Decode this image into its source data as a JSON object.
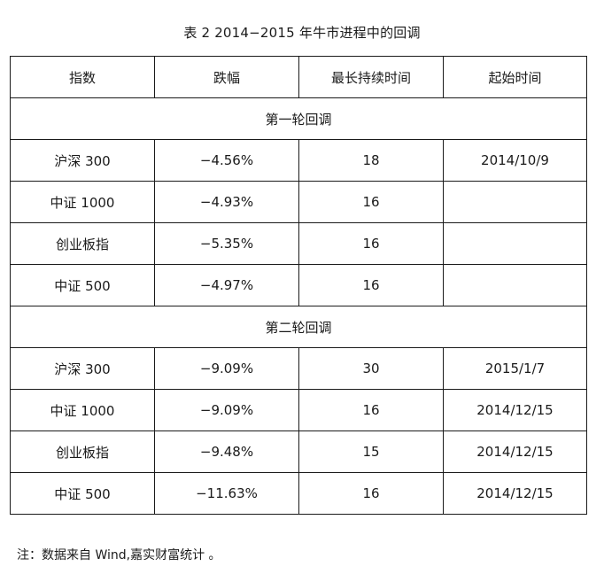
{
  "title": "表 2 2014−2015 年牛市进程中的回调",
  "headers": [
    "指数",
    "跌幅",
    "最长持续时间",
    "起始时间"
  ],
  "sections": [
    {
      "label": "第一轮回调",
      "rows": [
        [
          "沪深 300",
          "−4.56%",
          "18",
          "2014/10/9"
        ],
        [
          "中证 1000",
          "−4.93%",
          "16",
          ""
        ],
        [
          "创业板指",
          "−5.35%",
          "16",
          ""
        ],
        [
          "中证 500",
          "−4.97%",
          "16",
          ""
        ]
      ]
    },
    {
      "label": "第二轮回调",
      "rows": [
        [
          "沪深 300",
          "−9.09%",
          "30",
          "2015/1/7"
        ],
        [
          "中证 1000",
          "−9.09%",
          "16",
          "2014/12/15"
        ],
        [
          "创业板指",
          "−9.48%",
          "15",
          "2014/12/15"
        ],
        [
          "中证 500",
          "−11.63%",
          "16",
          "2014/12/15"
        ]
      ]
    }
  ],
  "note": "注：数据来自 Wind,嘉实财富统计 。"
}
